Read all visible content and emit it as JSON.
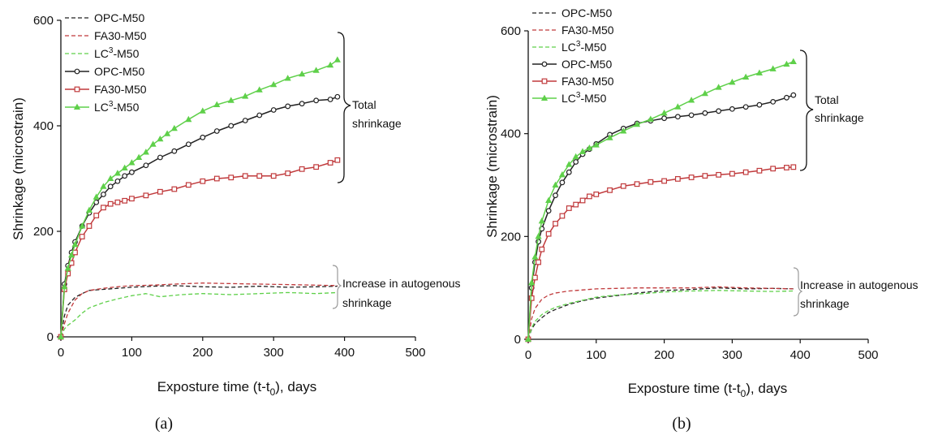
{
  "figure": {
    "panel_labels": [
      "(a)",
      "(b)"
    ],
    "colors": {
      "OPC": "#222222",
      "FA30": "#c0393b",
      "LC3": "#5fd04a",
      "axis": "#111111"
    }
  },
  "chart_data": [
    {
      "type": "line",
      "panel": "(a)",
      "xlabel": "Exposture time (t-t0), days",
      "ylabel": "Shrinkage (microstrain)",
      "xlim": [
        0,
        500
      ],
      "ylim": [
        0,
        600
      ],
      "xticks": [
        0,
        100,
        200,
        300,
        400,
        500
      ],
      "yticks": [
        0,
        200,
        400,
        600
      ],
      "legend_position": "top-left",
      "annotations": [
        "Total",
        "shrinkage",
        "Increase in autogenous",
        "shrinkage"
      ],
      "series": [
        {
          "name": "OPC-M50",
          "style": "dashed",
          "color": "#222222",
          "x": [
            0,
            5,
            10,
            20,
            30,
            40,
            60,
            80,
            100,
            130,
            160,
            200,
            240,
            280,
            320,
            360,
            390
          ],
          "y": [
            0,
            40,
            60,
            75,
            82,
            88,
            90,
            92,
            94,
            96,
            97,
            95,
            94,
            96,
            94,
            95,
            96
          ]
        },
        {
          "name": "FA30-M50",
          "style": "dashed",
          "color": "#c0393b",
          "x": [
            0,
            5,
            10,
            20,
            30,
            40,
            60,
            80,
            100,
            130,
            160,
            200,
            240,
            280,
            320,
            360,
            390
          ],
          "y": [
            0,
            25,
            45,
            70,
            82,
            88,
            92,
            95,
            97,
            98,
            100,
            102,
            101,
            100,
            99,
            98,
            97
          ]
        },
        {
          "name": "LC3-M50",
          "style": "dashed",
          "color": "#5fd04a",
          "x": [
            0,
            5,
            10,
            20,
            30,
            40,
            60,
            80,
            100,
            120,
            140,
            170,
            200,
            240,
            280,
            320,
            360,
            390
          ],
          "y": [
            0,
            15,
            22,
            32,
            45,
            55,
            65,
            72,
            78,
            82,
            76,
            80,
            82,
            80,
            82,
            84,
            82,
            84
          ]
        },
        {
          "name": "OPC-M50",
          "style": "solid-circle",
          "color": "#222222",
          "x": [
            0,
            5,
            10,
            15,
            20,
            30,
            40,
            50,
            60,
            70,
            80,
            90,
            100,
            120,
            140,
            160,
            180,
            200,
            220,
            240,
            260,
            280,
            300,
            320,
            340,
            360,
            380,
            390
          ],
          "y": [
            0,
            100,
            135,
            160,
            180,
            210,
            235,
            255,
            270,
            285,
            295,
            305,
            312,
            325,
            340,
            352,
            365,
            378,
            390,
            400,
            410,
            420,
            430,
            437,
            442,
            448,
            450,
            455
          ]
        },
        {
          "name": "FA30-M50",
          "style": "solid-square",
          "color": "#c0393b",
          "x": [
            0,
            5,
            10,
            15,
            20,
            30,
            40,
            50,
            60,
            70,
            80,
            90,
            100,
            120,
            140,
            160,
            180,
            200,
            220,
            240,
            260,
            280,
            300,
            320,
            340,
            360,
            380,
            390
          ],
          "y": [
            0,
            90,
            120,
            140,
            160,
            190,
            210,
            230,
            245,
            252,
            255,
            258,
            262,
            268,
            275,
            280,
            288,
            295,
            300,
            302,
            305,
            305,
            305,
            310,
            318,
            322,
            330,
            335
          ]
        },
        {
          "name": "LC3-M50",
          "style": "solid-triangle",
          "color": "#5fd04a",
          "x": [
            0,
            5,
            10,
            15,
            20,
            30,
            40,
            50,
            60,
            70,
            80,
            90,
            100,
            110,
            120,
            130,
            140,
            150,
            160,
            180,
            200,
            220,
            240,
            260,
            280,
            300,
            320,
            340,
            360,
            380,
            390
          ],
          "y": [
            0,
            95,
            130,
            155,
            175,
            210,
            240,
            265,
            285,
            300,
            310,
            320,
            330,
            340,
            350,
            365,
            375,
            385,
            395,
            412,
            428,
            440,
            448,
            456,
            468,
            478,
            490,
            498,
            505,
            515,
            525
          ]
        }
      ]
    },
    {
      "type": "line",
      "panel": "(b)",
      "xlabel": "Exposture time (t-t0), days",
      "ylabel": "Shrinkage (microstrain)",
      "xlim": [
        0,
        500
      ],
      "ylim": [
        0,
        600
      ],
      "xticks": [
        0,
        100,
        200,
        300,
        400,
        500
      ],
      "yticks": [
        0,
        200,
        400,
        600
      ],
      "legend_position": "top-left",
      "annotations": [
        "Total",
        "shrinkage",
        "Increase in autogenous",
        "shrinkage"
      ],
      "series": [
        {
          "name": "OPC-M50",
          "style": "dashed",
          "color": "#222222",
          "x": [
            0,
            5,
            10,
            20,
            30,
            40,
            60,
            80,
            100,
            130,
            160,
            200,
            240,
            280,
            320,
            360,
            390
          ],
          "y": [
            0,
            20,
            30,
            42,
            52,
            58,
            68,
            75,
            80,
            85,
            90,
            95,
            97,
            100,
            98,
            99,
            98
          ]
        },
        {
          "name": "FA30-M50",
          "style": "dashed",
          "color": "#c0393b",
          "x": [
            0,
            5,
            10,
            20,
            30,
            40,
            60,
            80,
            100,
            130,
            160,
            200,
            240,
            280,
            320,
            360,
            390
          ],
          "y": [
            0,
            40,
            60,
            78,
            86,
            90,
            94,
            96,
            98,
            99,
            100,
            100,
            100,
            102,
            100,
            99,
            98
          ]
        },
        {
          "name": "LC3-M50",
          "style": "dashed",
          "color": "#5fd04a",
          "x": [
            0,
            5,
            10,
            20,
            30,
            40,
            60,
            80,
            100,
            130,
            160,
            200,
            240,
            280,
            320,
            360,
            390
          ],
          "y": [
            0,
            22,
            35,
            48,
            56,
            62,
            70,
            76,
            82,
            86,
            88,
            92,
            94,
            95,
            94,
            93,
            94
          ]
        },
        {
          "name": "OPC-M50",
          "style": "solid-circle",
          "color": "#222222",
          "x": [
            0,
            5,
            10,
            15,
            20,
            30,
            40,
            50,
            60,
            70,
            80,
            90,
            100,
            120,
            140,
            160,
            180,
            200,
            220,
            240,
            260,
            280,
            300,
            320,
            340,
            360,
            380,
            390
          ],
          "y": [
            0,
            100,
            150,
            190,
            215,
            250,
            280,
            305,
            325,
            345,
            360,
            370,
            380,
            398,
            410,
            420,
            425,
            430,
            433,
            436,
            440,
            444,
            448,
            452,
            456,
            462,
            470,
            475
          ]
        },
        {
          "name": "FA30-M50",
          "style": "solid-square",
          "color": "#c0393b",
          "x": [
            0,
            5,
            10,
            15,
            20,
            30,
            40,
            50,
            60,
            70,
            80,
            90,
            100,
            120,
            140,
            160,
            180,
            200,
            220,
            240,
            260,
            280,
            300,
            320,
            340,
            360,
            380,
            390
          ],
          "y": [
            0,
            80,
            120,
            150,
            175,
            205,
            225,
            240,
            255,
            262,
            270,
            278,
            282,
            290,
            298,
            302,
            306,
            308,
            312,
            315,
            318,
            320,
            322,
            325,
            328,
            332,
            334,
            335
          ]
        },
        {
          "name": "LC3-M50",
          "style": "solid-triangle",
          "color": "#5fd04a",
          "x": [
            0,
            5,
            10,
            15,
            20,
            30,
            40,
            50,
            60,
            70,
            80,
            90,
            100,
            120,
            140,
            160,
            180,
            200,
            220,
            240,
            260,
            280,
            300,
            320,
            340,
            360,
            380,
            390
          ],
          "y": [
            0,
            110,
            160,
            200,
            230,
            270,
            300,
            320,
            340,
            355,
            365,
            372,
            378,
            392,
            405,
            418,
            428,
            440,
            452,
            465,
            478,
            490,
            500,
            510,
            518,
            526,
            535,
            540
          ]
        }
      ]
    }
  ]
}
